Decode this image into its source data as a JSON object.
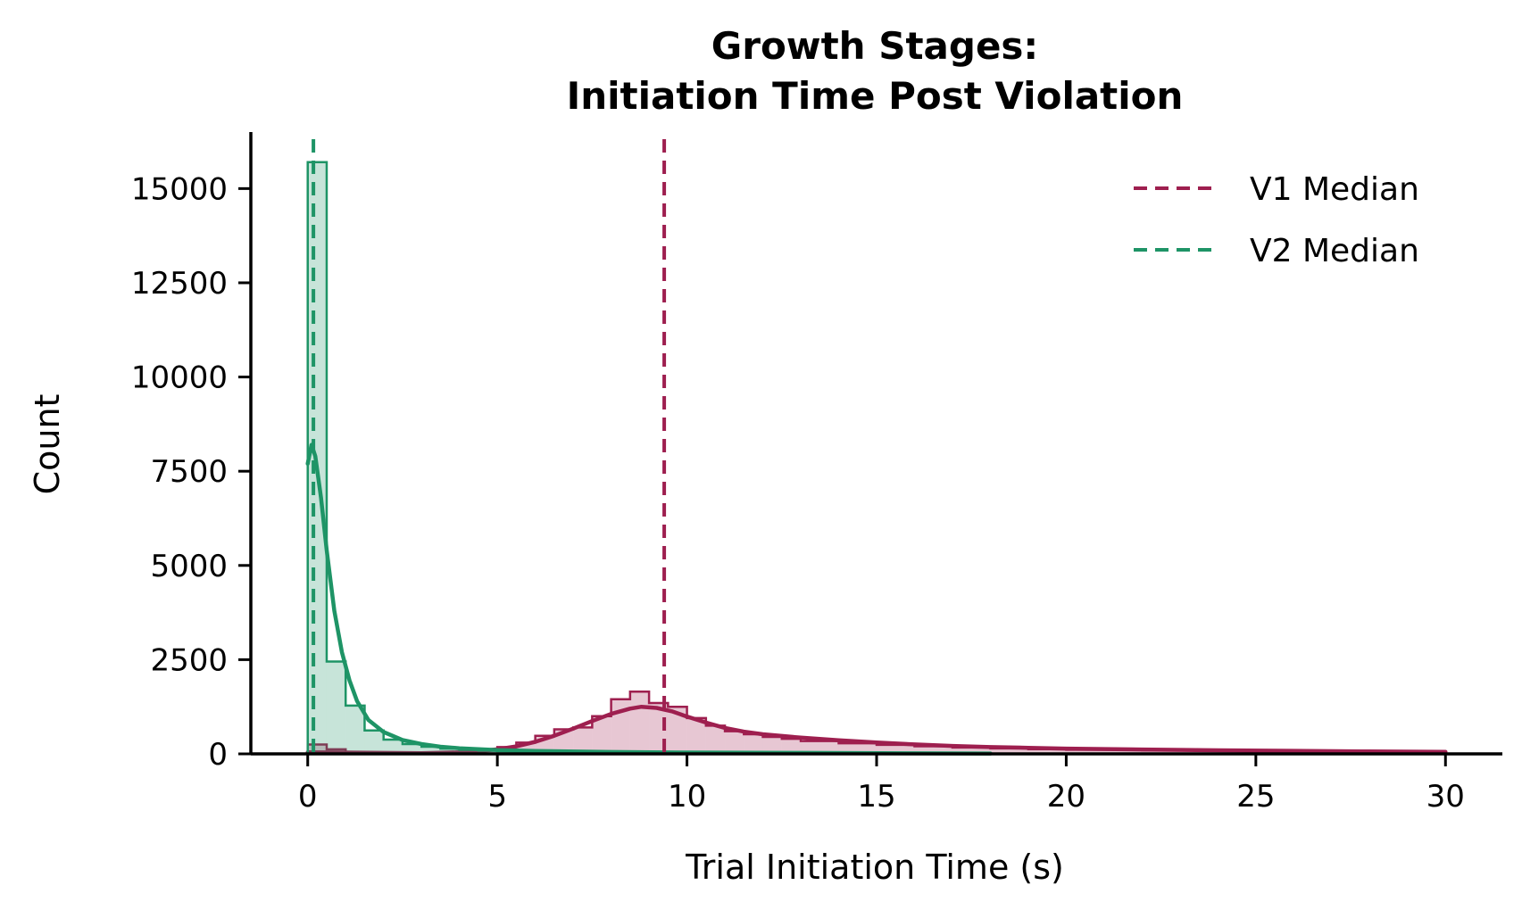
{
  "chart_data": {
    "type": "histogram",
    "title_lines": [
      "Growth Stages:",
      "Initiation Time Post Violation"
    ],
    "xlabel": "Trial Initiation Time (s)",
    "ylabel": "Count",
    "xlim": [
      -1.5,
      31.5
    ],
    "ylim": [
      0,
      16500
    ],
    "xticks": [
      0,
      5,
      10,
      15,
      20,
      25,
      30
    ],
    "xtick_labels": [
      "0",
      "5",
      "10",
      "15",
      "20",
      "25",
      "30"
    ],
    "yticks": [
      0,
      2500,
      5000,
      7500,
      10000,
      12500,
      15000
    ],
    "ytick_labels": [
      "0",
      "2500",
      "5000",
      "7500",
      "10000",
      "12500",
      "15000"
    ],
    "grid": false,
    "legend_position": "top-right",
    "bin_width": 0.5,
    "series": [
      {
        "id": "v1",
        "color": "#9e1f4f",
        "bins": [
          [
            0.0,
            0.5,
            250
          ],
          [
            0.5,
            1.0,
            120
          ],
          [
            1.0,
            1.5,
            30
          ],
          [
            1.5,
            2.0,
            20
          ],
          [
            2.0,
            2.5,
            20
          ],
          [
            2.5,
            3.0,
            25
          ],
          [
            3.0,
            3.5,
            30
          ],
          [
            3.5,
            4.0,
            40
          ],
          [
            4.0,
            4.5,
            60
          ],
          [
            4.5,
            5.0,
            100
          ],
          [
            5.0,
            5.5,
            180
          ],
          [
            5.5,
            6.0,
            300
          ],
          [
            6.0,
            6.5,
            480
          ],
          [
            6.5,
            7.0,
            650
          ],
          [
            7.0,
            7.5,
            700
          ],
          [
            7.5,
            8.0,
            1000
          ],
          [
            8.0,
            8.5,
            1450
          ],
          [
            8.5,
            9.0,
            1650
          ],
          [
            9.0,
            9.5,
            1350
          ],
          [
            9.5,
            10.0,
            1250
          ],
          [
            10.0,
            10.5,
            950
          ],
          [
            10.5,
            11.0,
            750
          ],
          [
            11.0,
            11.5,
            600
          ],
          [
            11.5,
            12.0,
            520
          ],
          [
            12.0,
            12.5,
            450
          ],
          [
            12.5,
            13.0,
            400
          ],
          [
            13.0,
            14.0,
            340
          ],
          [
            14.0,
            15.0,
            280
          ],
          [
            15.0,
            16.0,
            240
          ],
          [
            16.0,
            17.0,
            200
          ],
          [
            17.0,
            18.0,
            170
          ],
          [
            18.0,
            19.0,
            145
          ],
          [
            19.0,
            20.0,
            125
          ],
          [
            20.0,
            22.0,
            110
          ],
          [
            22.0,
            24.0,
            95
          ],
          [
            24.0,
            26.0,
            80
          ],
          [
            26.0,
            28.0,
            70
          ],
          [
            28.0,
            30.0,
            60
          ]
        ],
        "kde": [
          [
            0.0,
            40
          ],
          [
            1.0,
            35
          ],
          [
            2.0,
            25
          ],
          [
            3.0,
            20
          ],
          [
            4.0,
            40
          ],
          [
            4.5,
            70
          ],
          [
            5.0,
            120
          ],
          [
            5.5,
            200
          ],
          [
            6.0,
            320
          ],
          [
            6.5,
            480
          ],
          [
            7.0,
            670
          ],
          [
            7.5,
            870
          ],
          [
            8.0,
            1060
          ],
          [
            8.5,
            1200
          ],
          [
            8.8,
            1250
          ],
          [
            9.2,
            1220
          ],
          [
            9.6,
            1130
          ],
          [
            10.0,
            990
          ],
          [
            10.5,
            830
          ],
          [
            11.0,
            690
          ],
          [
            11.5,
            590
          ],
          [
            12.0,
            520
          ],
          [
            13.0,
            430
          ],
          [
            14.0,
            360
          ],
          [
            15.0,
            300
          ],
          [
            16.0,
            250
          ],
          [
            17.0,
            210
          ],
          [
            18.0,
            180
          ],
          [
            19.0,
            160
          ],
          [
            20.0,
            140
          ],
          [
            22.0,
            115
          ],
          [
            24.0,
            95
          ],
          [
            26.0,
            80
          ],
          [
            28.0,
            65
          ],
          [
            30.0,
            55
          ]
        ],
        "median": 9.4
      },
      {
        "id": "v2",
        "color": "#1e9466",
        "bins": [
          [
            0.0,
            0.5,
            15700
          ],
          [
            0.5,
            1.0,
            2450
          ],
          [
            1.0,
            1.5,
            1280
          ],
          [
            1.5,
            2.0,
            620
          ],
          [
            2.0,
            2.5,
            380
          ],
          [
            2.5,
            3.0,
            260
          ],
          [
            3.0,
            3.5,
            190
          ],
          [
            3.5,
            4.0,
            140
          ],
          [
            4.0,
            4.5,
            110
          ],
          [
            4.5,
            5.0,
            90
          ],
          [
            5.0,
            6.0,
            70
          ],
          [
            6.0,
            7.0,
            55
          ],
          [
            7.0,
            8.0,
            45
          ],
          [
            8.0,
            10.0,
            35
          ],
          [
            10.0,
            12.0,
            28
          ],
          [
            12.0,
            15.0,
            22
          ],
          [
            15.0,
            18.0,
            15
          ]
        ],
        "kde": [
          [
            0.0,
            7700
          ],
          [
            0.1,
            8200
          ],
          [
            0.2,
            7900
          ],
          [
            0.35,
            6800
          ],
          [
            0.5,
            5400
          ],
          [
            0.7,
            3800
          ],
          [
            0.9,
            2700
          ],
          [
            1.1,
            1950
          ],
          [
            1.3,
            1400
          ],
          [
            1.6,
            900
          ],
          [
            2.0,
            580
          ],
          [
            2.5,
            370
          ],
          [
            3.0,
            260
          ],
          [
            3.5,
            190
          ],
          [
            4.0,
            150
          ],
          [
            5.0,
            100
          ],
          [
            6.0,
            75
          ],
          [
            8.0,
            50
          ],
          [
            10.0,
            35
          ],
          [
            13.0,
            25
          ],
          [
            16.0,
            15
          ],
          [
            18.0,
            10
          ]
        ],
        "median": 0.15
      }
    ],
    "legend": [
      {
        "label": "V1 Median",
        "series": "v1"
      },
      {
        "label": "V2 Median",
        "series": "v2"
      }
    ]
  }
}
